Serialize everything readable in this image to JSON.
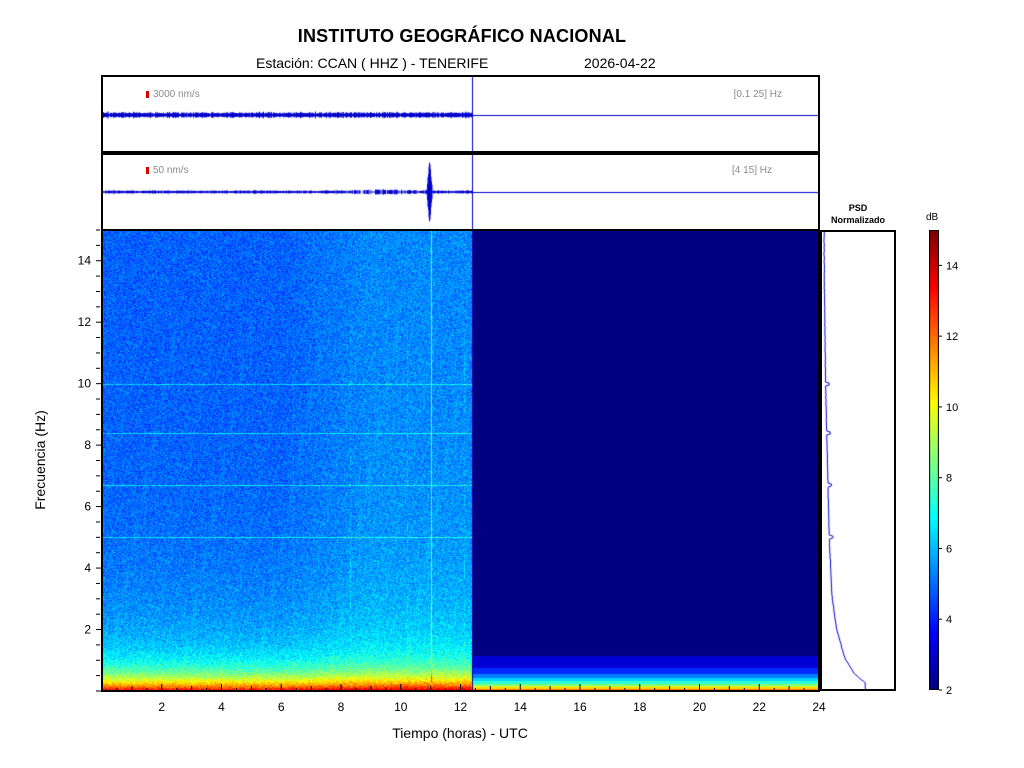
{
  "header": {
    "title": "INSTITUTO GEOGRÁFICO NACIONAL",
    "station": "Estación:  CCAN ( HHZ ) - TENERIFE",
    "date": "2026-04-22"
  },
  "traces": [
    {
      "scale_label": "3000 nm/s",
      "band_label": "[0.1 25] Hz"
    },
    {
      "scale_label": "50 nm/s",
      "band_label": "[4 15] Hz"
    }
  ],
  "psd": {
    "title_line1": "PSD",
    "title_line2": "Normalizado"
  },
  "colorbar": {
    "unit": "dB",
    "min": 2,
    "max": 15,
    "ticks": [
      2,
      4,
      6,
      8,
      10,
      12,
      14
    ]
  },
  "colors": {
    "trace": "#0000cc",
    "scale_bar": "#d40000"
  },
  "chart_data": {
    "type": "heatmap",
    "xlabel": "Tiempo (horas) - UTC",
    "ylabel": "Frecuencia  (Hz)",
    "xlim": [
      0,
      24
    ],
    "ylim": [
      0,
      15
    ],
    "xticks": [
      2,
      4,
      6,
      8,
      10,
      12,
      14,
      16,
      18,
      20,
      22,
      24
    ],
    "yticks": [
      2,
      4,
      6,
      8,
      10,
      12,
      14
    ],
    "data_end_hour": 12.4,
    "spectral_lines_hz": [
      10,
      6.7,
      5,
      8.4
    ],
    "event_hour": 11,
    "psd_profile": [
      {
        "f": 0.2,
        "v": 0.6
      },
      {
        "f": 0.5,
        "v": 0.45
      },
      {
        "f": 1,
        "v": 0.32
      },
      {
        "f": 2,
        "v": 0.2
      },
      {
        "f": 3,
        "v": 0.14
      },
      {
        "f": 4,
        "v": 0.12
      },
      {
        "f": 5,
        "v": 0.1
      },
      {
        "f": 6,
        "v": 0.09
      },
      {
        "f": 8,
        "v": 0.07
      },
      {
        "f": 10,
        "v": 0.05
      },
      {
        "f": 12,
        "v": 0.04
      },
      {
        "f": 14,
        "v": 0.03
      },
      {
        "f": 15,
        "v": 0.03
      }
    ]
  }
}
